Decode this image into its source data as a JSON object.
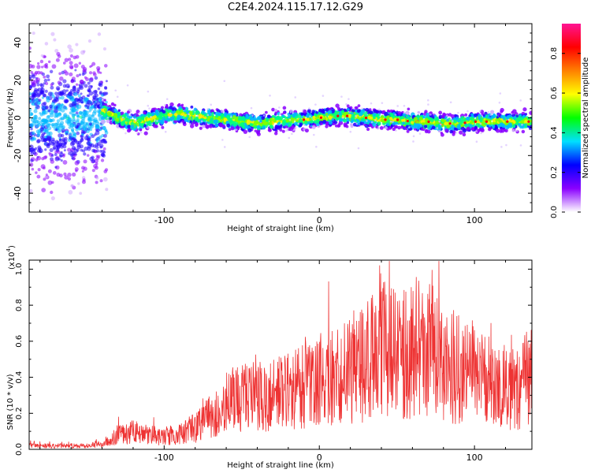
{
  "title": "C2E4.2024.115.17.12.G29",
  "chart_data": [
    {
      "type": "heatmap",
      "title": "C2E4.2024.115.17.12.G29",
      "xlabel": "Height of straight line (km)",
      "ylabel": "Frequency (Hz)",
      "xlim": [
        -187,
        137
      ],
      "ylim": [
        -50,
        50
      ],
      "x_ticks": [
        -100,
        0,
        100
      ],
      "y_ticks": [
        -40,
        -20,
        0,
        20,
        40
      ],
      "ridge_frequency": {
        "x": [
          -140,
          -130,
          -120,
          -110,
          -100,
          -90,
          -80,
          -70,
          -60,
          -50,
          -40,
          -30,
          -20,
          -10,
          0,
          10,
          20,
          30,
          40,
          50,
          60,
          70,
          80,
          90,
          100,
          110,
          120,
          130
        ],
        "y": [
          4,
          0,
          -3,
          -1,
          1,
          2,
          1,
          0,
          -1,
          -2,
          -3,
          -2,
          -1,
          -1,
          0,
          1,
          1,
          0,
          -1,
          -1,
          -2,
          -2,
          -3,
          -3,
          -2,
          -2,
          -2,
          -2
        ]
      },
      "colorbar": {
        "label": "Normalized spectral amplitude",
        "range": [
          0,
          0.95
        ],
        "ticks": [
          0.0,
          0.2,
          0.4,
          0.6,
          0.8
        ],
        "tick_labels": [
          "0.0",
          "0.2",
          "0.4",
          "0.6",
          "0.8"
        ],
        "colors": [
          "#ffffff",
          "#8a00ff",
          "#0000ff",
          "#00e0ff",
          "#00ff00",
          "#ffff00",
          "#ff8000",
          "#ff0000",
          "#ff1493"
        ]
      },
      "grid": false
    },
    {
      "type": "line",
      "xlabel": "Height of straight line (km)",
      "ylabel": "SNR (10 * v/v)",
      "y_multiplier_label": "(x10",
      "y_multiplier_exp": "4",
      "xlim": [
        -187,
        137
      ],
      "ylim": [
        0,
        1.05
      ],
      "x_ticks": [
        -100,
        0,
        100
      ],
      "y_ticks": [
        0.0,
        0.2,
        0.4,
        0.6,
        0.8,
        1.0
      ],
      "y_tick_labels": [
        "0.0",
        "0.2",
        "0.4",
        "0.6",
        "0.8",
        "1.0"
      ],
      "series": [
        {
          "color": "#ee3333",
          "x": [
            -187,
            -180,
            -170,
            -160,
            -150,
            -140,
            -130,
            -120,
            -110,
            -100,
            -90,
            -80,
            -70,
            -60,
            -50,
            -40,
            -30,
            -20,
            -10,
            0,
            10,
            20,
            30,
            40,
            50,
            60,
            70,
            80,
            90,
            100,
            110,
            120,
            130,
            137
          ],
          "y": [
            0.02,
            0.02,
            0.02,
            0.02,
            0.02,
            0.03,
            0.08,
            0.1,
            0.08,
            0.07,
            0.09,
            0.12,
            0.18,
            0.25,
            0.28,
            0.3,
            0.3,
            0.32,
            0.35,
            0.38,
            0.4,
            0.45,
            0.48,
            0.62,
            0.5,
            0.55,
            0.62,
            0.5,
            0.45,
            0.42,
            0.38,
            0.35,
            0.36,
            0.45
          ]
        }
      ],
      "grid": false
    }
  ]
}
